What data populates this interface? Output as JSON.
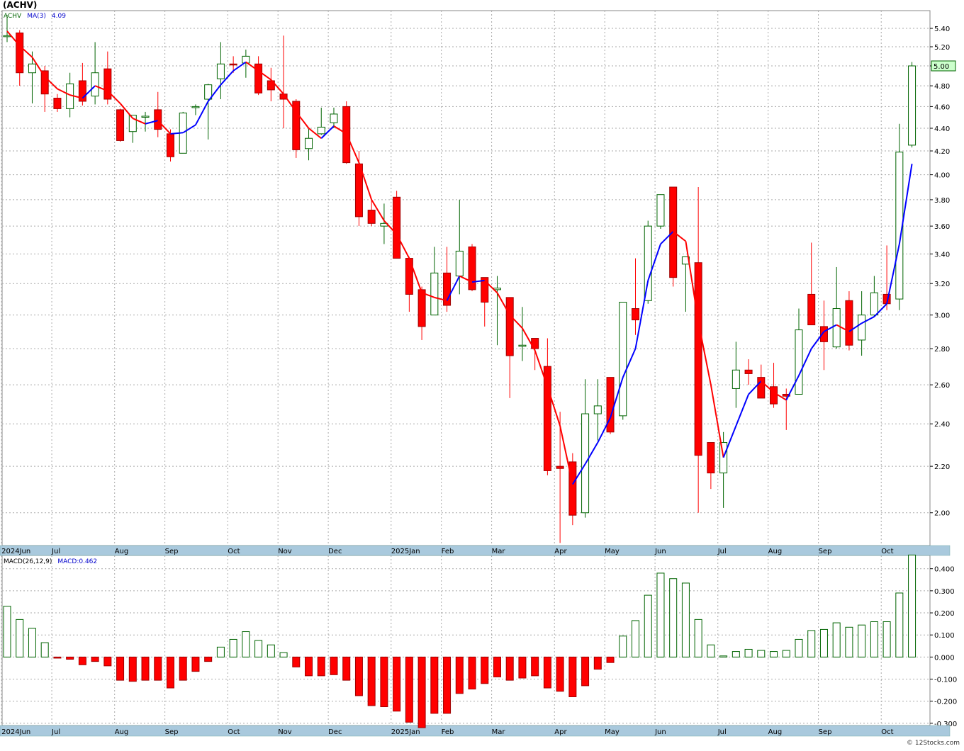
{
  "title": "(ACHV)",
  "credit": "© 12Stocks.com",
  "colors": {
    "up": "#006400",
    "down": "#ff0000",
    "ma_up": "#0000ff",
    "ma_down": "#ff0000",
    "grid": "#aaaaaa",
    "axis_bar": "#a9c9dd",
    "price_label_bg": "#ccffcc"
  },
  "price_panel": {
    "legend_symbol": "ACHV",
    "legend_ma": "MA(3)",
    "legend_ma_value": "4.09",
    "last_price_label": "5.00",
    "y_ticks": [
      "2.00",
      "2.20",
      "2.40",
      "2.60",
      "2.80",
      "3.00",
      "3.20",
      "3.40",
      "3.60",
      "3.80",
      "4.00",
      "4.20",
      "4.40",
      "4.60",
      "4.80",
      "5.00",
      "5.20",
      "5.40"
    ]
  },
  "macd_panel": {
    "legend_name": "MACD(26,12,9)",
    "legend_value": "MACD:0.462",
    "y_ticks": [
      "0.400",
      "0.300",
      "0.200",
      "0.100",
      "0.000",
      "-0.100",
      "-0.200",
      "-0.300"
    ]
  },
  "x_labels": [
    {
      "label": "2024Jun",
      "week": 0
    },
    {
      "label": "Jul",
      "week": 4
    },
    {
      "label": "Aug",
      "week": 9
    },
    {
      "label": "Sep",
      "week": 13
    },
    {
      "label": "Oct",
      "week": 18
    },
    {
      "label": "Nov",
      "week": 22
    },
    {
      "label": "Dec",
      "week": 26
    },
    {
      "label": "2025Jan",
      "week": 31
    },
    {
      "label": "Feb",
      "week": 35
    },
    {
      "label": "Mar",
      "week": 39
    },
    {
      "label": "Apr",
      "week": 44
    },
    {
      "label": "May",
      "week": 48
    },
    {
      "label": "Jun",
      "week": 52
    },
    {
      "label": "Jul",
      "week": 57
    },
    {
      "label": "Aug",
      "week": 61
    },
    {
      "label": "Sep",
      "week": 65
    },
    {
      "label": "Oct",
      "week": 70
    }
  ],
  "chart_data": [
    {
      "type": "candlestick",
      "title": "(ACHV)",
      "scale": "log",
      "ylim": [
        1.87,
        5.6
      ],
      "ohlc": [
        [
          5.32,
          5.55,
          5.25,
          5.32
        ],
        [
          5.35,
          5.38,
          4.8,
          4.93
        ],
        [
          4.93,
          5.15,
          4.63,
          5.02
        ],
        [
          4.95,
          5.0,
          4.55,
          4.72
        ],
        [
          4.68,
          4.72,
          4.55,
          4.58
        ],
        [
          4.58,
          4.93,
          4.5,
          4.82
        ],
        [
          4.85,
          5.03,
          4.61,
          4.65
        ],
        [
          4.7,
          5.25,
          4.62,
          4.93
        ],
        [
          4.97,
          5.15,
          4.62,
          4.67
        ],
        [
          4.57,
          4.58,
          4.28,
          4.29
        ],
        [
          4.37,
          4.52,
          4.27,
          4.52
        ],
        [
          4.51,
          4.55,
          4.37,
          4.51
        ],
        [
          4.57,
          4.74,
          4.32,
          4.39
        ],
        [
          4.35,
          4.39,
          4.11,
          4.15
        ],
        [
          4.18,
          4.55,
          4.18,
          4.54
        ],
        [
          4.6,
          4.62,
          4.52,
          4.6
        ],
        [
          4.67,
          4.82,
          4.3,
          4.81
        ],
        [
          4.87,
          5.25,
          4.67,
          5.02
        ],
        [
          5.02,
          5.1,
          4.93,
          5.01
        ],
        [
          5.03,
          5.17,
          4.88,
          5.1
        ],
        [
          5.02,
          5.1,
          4.71,
          4.73
        ],
        [
          4.85,
          4.98,
          4.65,
          4.76
        ],
        [
          4.72,
          5.32,
          4.4,
          4.67
        ],
        [
          4.65,
          4.67,
          4.14,
          4.21
        ],
        [
          4.22,
          4.4,
          4.12,
          4.31
        ],
        [
          4.35,
          4.59,
          4.34,
          4.41
        ],
        [
          4.45,
          4.59,
          4.4,
          4.53
        ],
        [
          4.6,
          4.65,
          4.09,
          4.1
        ],
        [
          4.09,
          4.2,
          3.6,
          3.67
        ],
        [
          3.72,
          3.8,
          3.6,
          3.62
        ],
        [
          3.6,
          3.77,
          3.47,
          3.62
        ],
        [
          3.82,
          3.87,
          3.37,
          3.37
        ],
        [
          3.37,
          3.38,
          3.02,
          3.13
        ],
        [
          3.16,
          3.18,
          2.85,
          2.93
        ],
        [
          3.0,
          3.45,
          3.0,
          3.27
        ],
        [
          3.27,
          3.45,
          3.02,
          3.06
        ],
        [
          3.25,
          3.8,
          3.13,
          3.42
        ],
        [
          3.45,
          3.47,
          3.15,
          3.16
        ],
        [
          3.24,
          3.24,
          2.93,
          3.08
        ],
        [
          3.16,
          3.25,
          2.82,
          3.17
        ],
        [
          3.11,
          3.11,
          2.53,
          2.76
        ],
        [
          2.82,
          3.05,
          2.73,
          2.82
        ],
        [
          2.86,
          2.86,
          2.68,
          2.8
        ],
        [
          2.7,
          2.86,
          2.16,
          2.18
        ],
        [
          2.2,
          2.46,
          1.88,
          2.19
        ],
        [
          2.22,
          2.26,
          1.95,
          1.99
        ],
        [
          2.0,
          2.63,
          1.98,
          2.45
        ],
        [
          2.45,
          2.63,
          2.32,
          2.49
        ],
        [
          2.64,
          2.64,
          2.35,
          2.36
        ],
        [
          2.44,
          3.08,
          2.42,
          3.08
        ],
        [
          3.04,
          3.37,
          2.88,
          2.97
        ],
        [
          3.09,
          3.64,
          3.07,
          3.6
        ],
        [
          3.6,
          3.84,
          3.58,
          3.84
        ],
        [
          3.9,
          3.9,
          3.18,
          3.24
        ],
        [
          3.33,
          3.38,
          3.02,
          3.38
        ],
        [
          3.34,
          3.9,
          2.0,
          2.25
        ],
        [
          2.31,
          2.31,
          2.1,
          2.17
        ],
        [
          2.17,
          2.36,
          2.02,
          2.31
        ],
        [
          2.58,
          2.84,
          2.48,
          2.68
        ],
        [
          2.68,
          2.74,
          2.6,
          2.66
        ],
        [
          2.64,
          2.71,
          2.53,
          2.53
        ],
        [
          2.59,
          2.72,
          2.48,
          2.5
        ],
        [
          2.55,
          2.58,
          2.37,
          2.54
        ],
        [
          2.55,
          3.04,
          2.55,
          2.91
        ],
        [
          3.13,
          3.48,
          2.94,
          2.94
        ],
        [
          2.93,
          3.09,
          2.68,
          2.84
        ],
        [
          2.81,
          3.31,
          2.8,
          3.04
        ],
        [
          3.09,
          3.15,
          2.79,
          2.82
        ],
        [
          2.85,
          3.15,
          2.76,
          3.0
        ],
        [
          3.0,
          3.25,
          2.99,
          3.14
        ],
        [
          3.13,
          3.46,
          3.03,
          3.07
        ],
        [
          3.1,
          4.44,
          3.03,
          4.19
        ],
        [
          4.25,
          5.04,
          4.23,
          5.0
        ]
      ],
      "ma3": [
        5.37,
        5.21,
        5.09,
        4.89,
        4.77,
        4.71,
        4.68,
        4.8,
        4.75,
        4.63,
        4.49,
        4.44,
        4.47,
        4.35,
        4.36,
        4.43,
        4.65,
        4.81,
        4.95,
        5.04,
        4.95,
        4.86,
        4.72,
        4.55,
        4.4,
        4.31,
        4.42,
        4.35,
        4.1,
        3.8,
        3.64,
        3.54,
        3.37,
        3.14,
        3.11,
        3.09,
        3.25,
        3.21,
        3.22,
        3.14,
        3.0,
        2.92,
        2.79,
        2.59,
        2.39,
        2.12,
        2.21,
        2.31,
        2.43,
        2.64,
        2.8,
        3.22,
        3.47,
        3.56,
        3.49,
        2.96,
        2.6,
        2.24,
        2.39,
        2.55,
        2.62,
        2.56,
        2.52,
        2.65,
        2.8,
        2.9,
        2.94,
        2.9,
        2.95,
        2.99,
        3.07,
        3.47,
        4.09
      ],
      "legend": {
        "symbol": "ACHV",
        "ma": "MA(3)",
        "ma_value": "4.09"
      },
      "last_price_label": "5.00"
    },
    {
      "type": "bar",
      "title": "MACD(26,12,9)",
      "ylim": [
        -0.31,
        0.46
      ],
      "values": [
        0.23,
        0.17,
        0.13,
        0.065,
        -0.005,
        -0.01,
        -0.035,
        -0.02,
        -0.04,
        -0.105,
        -0.11,
        -0.105,
        -0.105,
        -0.14,
        -0.105,
        -0.065,
        -0.02,
        0.045,
        0.08,
        0.115,
        0.075,
        0.055,
        0.02,
        -0.045,
        -0.085,
        -0.085,
        -0.08,
        -0.105,
        -0.175,
        -0.22,
        -0.225,
        -0.245,
        -0.295,
        -0.32,
        -0.255,
        -0.255,
        -0.165,
        -0.145,
        -0.12,
        -0.09,
        -0.105,
        -0.095,
        -0.085,
        -0.14,
        -0.155,
        -0.18,
        -0.13,
        -0.055,
        -0.025,
        0.095,
        0.165,
        0.28,
        0.38,
        0.355,
        0.335,
        0.17,
        0.055,
        0.005,
        0.025,
        0.035,
        0.03,
        0.025,
        0.03,
        0.08,
        0.12,
        0.125,
        0.155,
        0.135,
        0.145,
        0.16,
        0.16,
        0.29,
        0.462
      ],
      "legend_value": "MACD:0.462"
    }
  ]
}
